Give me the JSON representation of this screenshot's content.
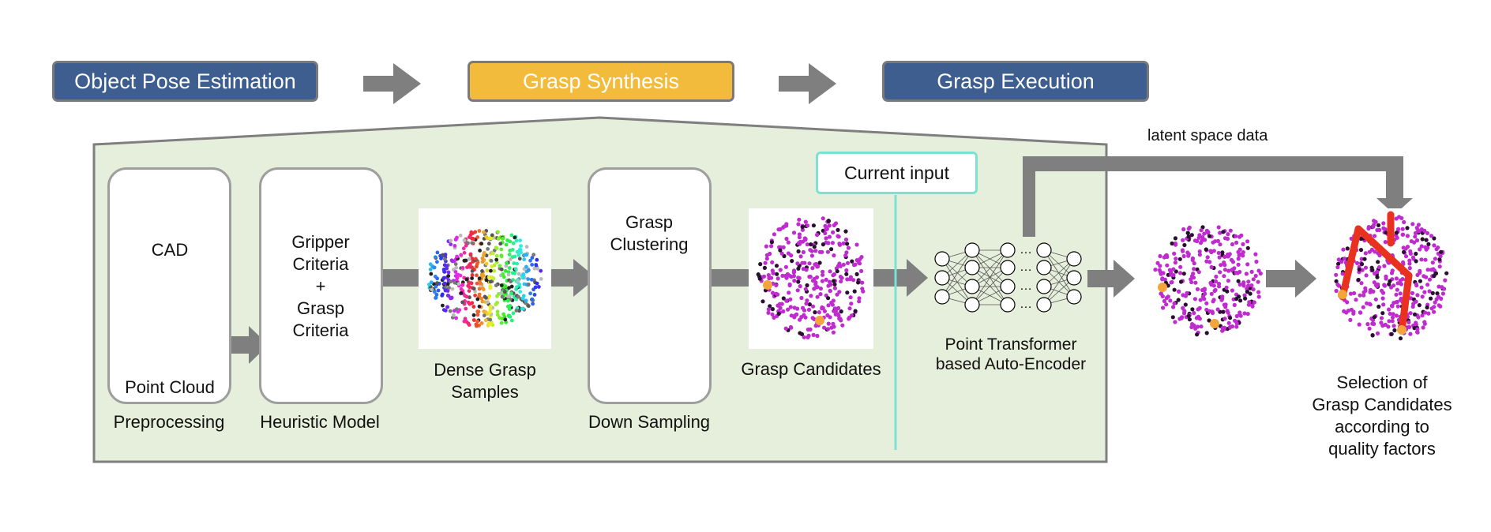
{
  "stages": {
    "pose": "Object Pose Estimation",
    "synthesis": "Grasp Synthesis",
    "execution": "Grasp Execution"
  },
  "preprocessing": {
    "cad": "CAD",
    "point_cloud": "Point Cloud",
    "caption": "Preprocessing"
  },
  "heuristic": {
    "line1": "Gripper",
    "line2": "Criteria",
    "line3": "+",
    "line4": "Grasp",
    "line5": "Criteria",
    "caption": "Heuristic Model"
  },
  "dense": {
    "line1": "Dense Grasp",
    "line2": "Samples"
  },
  "downsampling": {
    "line1": "Grasp",
    "line2": "Clustering",
    "caption": "Down Sampling"
  },
  "candidates": {
    "caption": "Grasp Candidates"
  },
  "current_input": "Current input",
  "latent": "latent space data",
  "encoder": {
    "line1": "Point Transformer",
    "line2": "based Auto-Encoder"
  },
  "selection": {
    "line1": "Selection  of",
    "line2": "Grasp Candidates",
    "line3": "according to",
    "line4": "quality  factors"
  },
  "colors": {
    "stage_blue": "#3d5e8f",
    "stage_gold": "#f3bb3c",
    "panel_fill": "#e6efdb",
    "arrow_gray": "#7f7f7f",
    "current_input_teal": "#7ee0d2",
    "point_magenta": "#c02bd0",
    "grasp_red": "#e8321f"
  }
}
